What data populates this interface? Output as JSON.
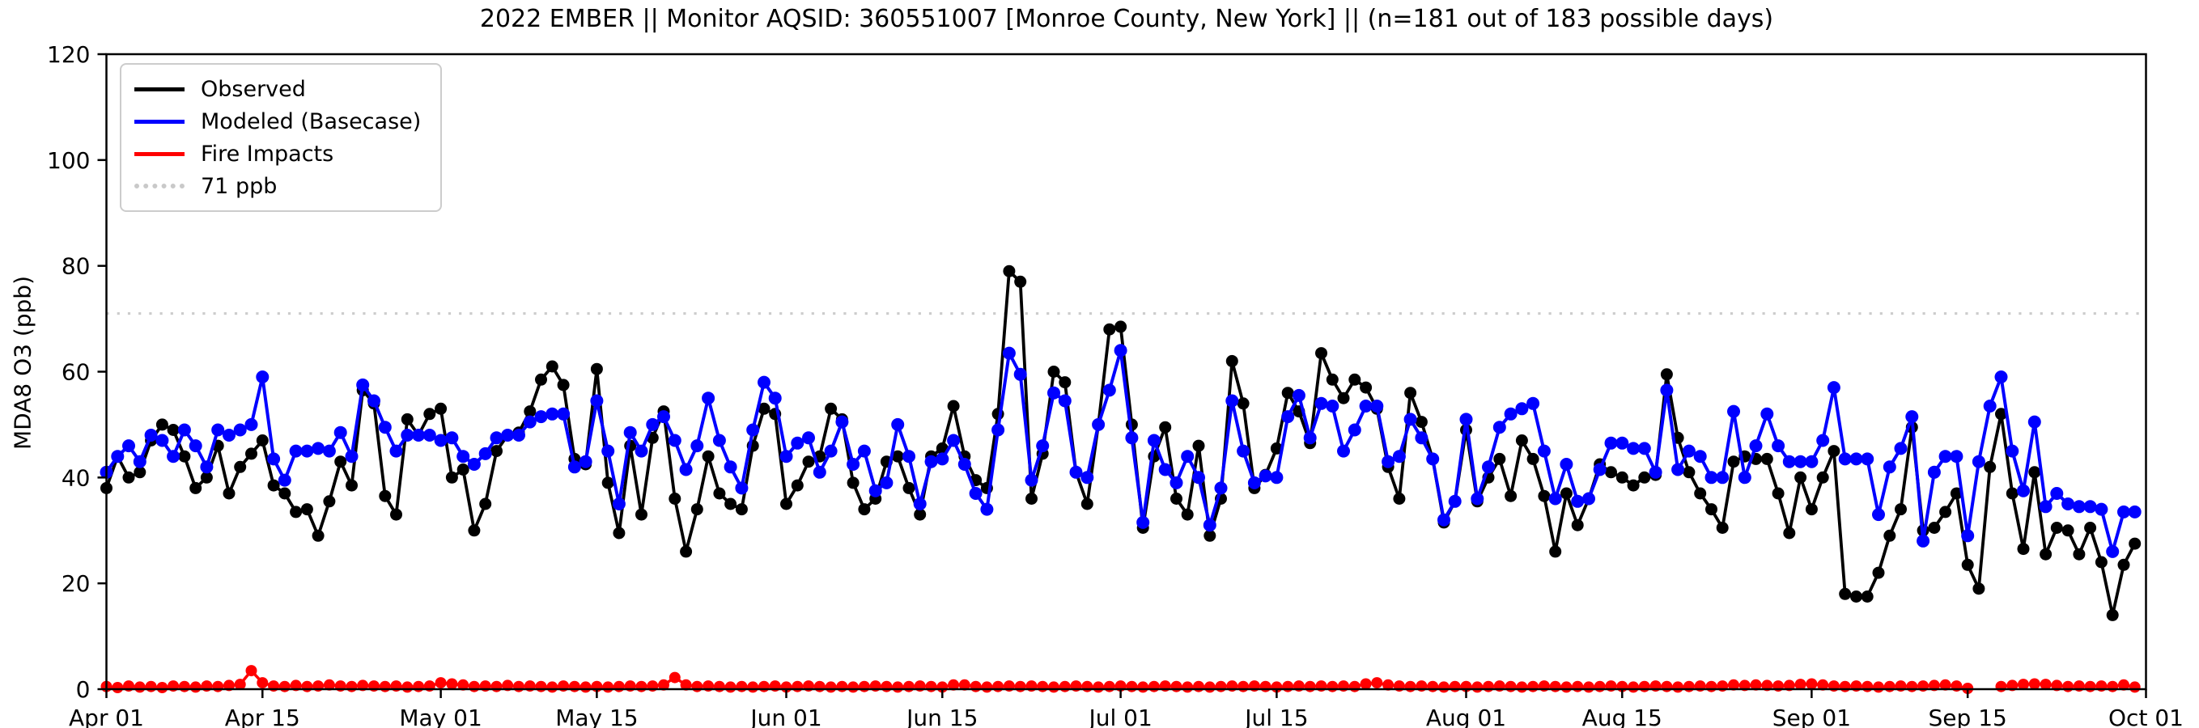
{
  "chart_data": {
    "type": "line",
    "title": "2022 EMBER || Monitor AQSID: 360551007 [Monroe County, New York] || (n=181 out of 183 possible days)",
    "ylabel": "MDA8 O3 (ppb)",
    "ylim": [
      0,
      120
    ],
    "yticks": [
      0,
      20,
      40,
      60,
      80,
      100,
      120
    ],
    "n_days": 183,
    "x_range": [
      "Apr 01",
      "Oct 01"
    ],
    "grid": false,
    "legend_position": "upper left",
    "xticks": [
      {
        "label": "Apr 01",
        "day": 0
      },
      {
        "label": "Apr 15",
        "day": 14
      },
      {
        "label": "May 01",
        "day": 30
      },
      {
        "label": "May 15",
        "day": 44
      },
      {
        "label": "Jun 01",
        "day": 61
      },
      {
        "label": "Jun 15",
        "day": 75
      },
      {
        "label": "Jul 01",
        "day": 91
      },
      {
        "label": "Jul 15",
        "day": 105
      },
      {
        "label": "Aug 01",
        "day": 122
      },
      {
        "label": "Aug 15",
        "day": 136
      },
      {
        "label": "Sep 01",
        "day": 153
      },
      {
        "label": "Sep 15",
        "day": 167
      },
      {
        "label": "Oct 01",
        "day": 183
      }
    ],
    "threshold": {
      "label": "71 ppb",
      "value": 71,
      "color": "#cccccc"
    },
    "series": [
      {
        "name": "Observed",
        "color": "#000000",
        "marker_r": 7.5,
        "line_w": 3.8,
        "values": [
          38,
          44,
          40,
          41,
          47,
          50,
          49,
          44,
          38,
          40,
          46,
          37,
          42,
          44.5,
          47,
          38.5,
          37,
          33.5,
          34,
          29,
          35.5,
          43,
          38.5,
          56.5,
          54,
          36.5,
          33,
          51,
          48,
          52,
          53,
          40,
          41.5,
          30,
          35,
          45,
          48,
          48.5,
          52.5,
          58.5,
          61,
          57.5,
          43.5,
          42.5,
          60.5,
          39,
          29.5,
          46,
          33,
          47.5,
          52.5,
          36,
          26,
          34,
          44,
          37,
          35,
          34,
          46,
          53,
          52,
          35,
          38.5,
          43,
          44,
          53,
          51,
          39,
          34,
          36,
          43,
          44,
          38,
          33,
          44,
          45.5,
          53.5,
          44,
          39.5,
          38,
          52,
          79,
          77,
          36,
          44.5,
          60,
          58,
          41,
          35,
          50,
          68,
          68.5,
          50,
          30.5,
          44,
          49.5,
          36,
          33,
          46,
          29,
          36,
          62,
          54,
          38,
          40.5,
          45.5,
          56,
          52.5,
          46.5,
          63.5,
          58.5,
          55,
          58.5,
          57,
          53,
          42,
          36,
          56,
          50.5,
          43.5,
          31.5,
          35.5,
          49,
          35.5,
          40,
          43.5,
          36.5,
          47,
          43.5,
          36.5,
          26,
          37,
          31,
          36,
          42.5,
          41,
          40,
          38.5,
          40,
          40.5,
          59.5,
          47.5,
          41,
          37,
          34,
          30.5,
          43,
          44,
          43.5,
          43.5,
          37,
          29.5,
          40,
          34,
          40,
          45,
          18,
          17.5,
          17.5,
          22,
          29,
          34,
          49.5,
          30,
          30.5,
          33.5,
          37,
          23.5,
          19,
          42,
          52,
          37,
          26.5,
          41,
          25.5,
          30.5,
          30,
          25.5,
          30.5,
          24,
          14,
          23.5,
          27.5
        ]
      },
      {
        "name": "Modeled (Basecase)",
        "color": "#0000ff",
        "marker_r": 8,
        "line_w": 4,
        "values": [
          41,
          44,
          46,
          43,
          48,
          47,
          44,
          49,
          46,
          42,
          49,
          48,
          49,
          50,
          59,
          43.5,
          39.5,
          45,
          45,
          45.5,
          45,
          48.5,
          44,
          57.5,
          54.5,
          49.5,
          45,
          48,
          48,
          48,
          47,
          47.5,
          44,
          42.5,
          44.5,
          47.5,
          48,
          48,
          50.5,
          51.5,
          52,
          52,
          42,
          43,
          54.5,
          45,
          35,
          48.5,
          45,
          50,
          51.5,
          47,
          41.5,
          46,
          55,
          47,
          42,
          38,
          49,
          58,
          55,
          44,
          46.5,
          47.5,
          41,
          45,
          50.5,
          42.5,
          45,
          37.5,
          39,
          50,
          44,
          35,
          43,
          43.5,
          47,
          42.5,
          37,
          34,
          49,
          63.5,
          59.5,
          39.5,
          46,
          56,
          54.5,
          41,
          40,
          50,
          56.5,
          64,
          47.5,
          31.5,
          47,
          41.5,
          39,
          44,
          40,
          31,
          38,
          54.5,
          45,
          39,
          40.3,
          40,
          51.5,
          55.5,
          47.5,
          54,
          53.5,
          45,
          49,
          53.5,
          53.5,
          43,
          44,
          51,
          47.5,
          43.5,
          32,
          35.5,
          51,
          36,
          42,
          49.5,
          52,
          53,
          54,
          45,
          36,
          42.5,
          35.5,
          36,
          41.5,
          46.5,
          46.5,
          45.5,
          45.5,
          41,
          56.5,
          41.5,
          45,
          44,
          40,
          40,
          52.5,
          40,
          46,
          52,
          46,
          43,
          43,
          43,
          47,
          57,
          43.5,
          43.5,
          43.5,
          33,
          42,
          45.5,
          51.5,
          28,
          41,
          44,
          44,
          29,
          43,
          53.5,
          59,
          45,
          37.5,
          50.5,
          34.5,
          37,
          35,
          34.5,
          34.5,
          34,
          26,
          33.5,
          33.5
        ]
      },
      {
        "name": "Fire Impacts",
        "color": "#ff0000",
        "marker_r": 7,
        "line_w": 3.5,
        "values": [
          0.5,
          0.3,
          0.6,
          0.4,
          0.5,
          0.3,
          0.6,
          0.5,
          0.4,
          0.6,
          0.5,
          0.7,
          0.9,
          3.5,
          1.2,
          0.6,
          0.5,
          0.7,
          0.5,
          0.6,
          0.8,
          0.6,
          0.5,
          0.7,
          0.6,
          0.5,
          0.6,
          0.4,
          0.5,
          0.6,
          1.2,
          1.0,
          0.8,
          0.5,
          0.6,
          0.5,
          0.7,
          0.5,
          0.6,
          0.5,
          0.4,
          0.6,
          0.5,
          0.4,
          0.5,
          0.4,
          0.5,
          0.6,
          0.5,
          0.6,
          0.8,
          2.2,
          0.8,
          0.5,
          0.6,
          0.5,
          0.4,
          0.5,
          0.4,
          0.5,
          0.6,
          0.4,
          0.5,
          0.6,
          0.5,
          0.4,
          0.5,
          0.4,
          0.5,
          0.6,
          0.5,
          0.4,
          0.5,
          0.6,
          0.5,
          0.4,
          0.8,
          0.8,
          0.5,
          0.4,
          0.5,
          0.6,
          0.5,
          0.6,
          0.5,
          0.4,
          0.5,
          0.6,
          0.5,
          0.4,
          0.5,
          0.6,
          0.5,
          0.4,
          0.5,
          0.6,
          0.5,
          0.4,
          0.5,
          0.4,
          0.5,
          0.6,
          0.5,
          0.6,
          0.5,
          0.4,
          0.5,
          0.6,
          0.5,
          0.6,
          0.5,
          0.6,
          0.5,
          1.0,
          1.2,
          0.8,
          0.6,
          0.5,
          0.6,
          0.5,
          0.4,
          0.5,
          0.5,
          0.4,
          0.5,
          0.6,
          0.5,
          0.4,
          0.5,
          0.6,
          0.5,
          0.4,
          0.5,
          0.4,
          0.5,
          0.6,
          0.5,
          0.4,
          0.5,
          0.6,
          0.5,
          0.4,
          0.5,
          0.6,
          0.5,
          0.6,
          0.8,
          0.7,
          0.8,
          0.7,
          0.6,
          0.7,
          0.9,
          1.0,
          0.8,
          0.6,
          0.5,
          0.6,
          0.5,
          0.4,
          0.5,
          0.6,
          0.5,
          0.6,
          0.7,
          0.8,
          0.6,
          0.15,
          null,
          null,
          0.5,
          0.7,
          0.9,
          1.0,
          0.9,
          0.7,
          0.5,
          0.6,
          0.5,
          0.6,
          0.5,
          0.8,
          0.4
        ]
      }
    ]
  },
  "legend": {
    "items": [
      "Observed",
      "Modeled (Basecase)",
      "Fire Impacts",
      "71 ppb"
    ]
  }
}
